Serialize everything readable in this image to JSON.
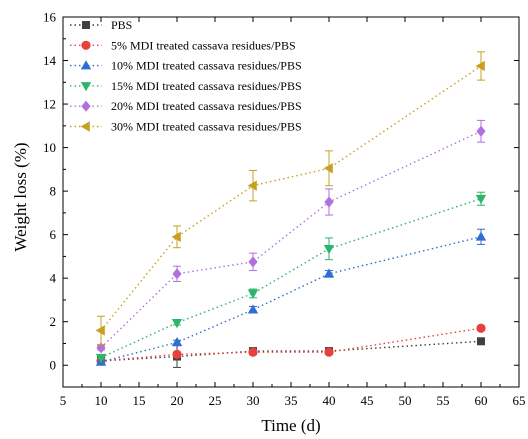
{
  "chart_data": {
    "type": "scatter",
    "xlabel": "Time (d)",
    "ylabel": "Weight loss (%)",
    "xlim": [
      5,
      65
    ],
    "ylim": [
      -1,
      16
    ],
    "x_ticks": [
      5,
      10,
      15,
      20,
      25,
      30,
      35,
      40,
      45,
      50,
      55,
      60,
      65
    ],
    "y_ticks": [
      0,
      2,
      4,
      6,
      8,
      10,
      12,
      14,
      16
    ],
    "grid": false,
    "legend_position": "top-left",
    "x": [
      10,
      20,
      30,
      40,
      60
    ],
    "series": [
      {
        "name": "PBS",
        "color": "#404040",
        "marker": "square",
        "values": [
          0.2,
          0.4,
          0.65,
          0.65,
          1.1
        ],
        "errors": [
          0.05,
          0.5,
          0.1,
          0.1,
          0.1
        ]
      },
      {
        "name": "5% MDI treated cassava residues/PBS",
        "color": "#e8403c",
        "marker": "circle",
        "values": [
          0.2,
          0.5,
          0.6,
          0.6,
          1.7
        ],
        "errors": [
          0.05,
          0.1,
          0.1,
          0.1,
          0.1
        ]
      },
      {
        "name": "10% MDI treated cassava residues/PBS",
        "color": "#2f6fd1",
        "marker": "triangle-up",
        "values": [
          0.15,
          1.05,
          2.55,
          4.2,
          5.9
        ],
        "errors": [
          0.05,
          0.1,
          0.15,
          0.15,
          0.35
        ]
      },
      {
        "name": "15% MDI treated cassava residues/PBS",
        "color": "#2db56a",
        "marker": "triangle-down",
        "values": [
          0.35,
          1.95,
          3.3,
          5.35,
          7.65
        ],
        "errors": [
          0.05,
          0.1,
          0.2,
          0.5,
          0.3
        ]
      },
      {
        "name": "20% MDI treated cassava residues/PBS",
        "color": "#b070e0",
        "marker": "diamond",
        "values": [
          0.8,
          4.2,
          4.75,
          7.5,
          10.75
        ],
        "errors": [
          0.1,
          0.35,
          0.4,
          0.6,
          0.5
        ]
      },
      {
        "name": "30% MDI treated cassava residues/PBS",
        "color": "#c8a020",
        "marker": "triangle-left",
        "values": [
          1.6,
          5.9,
          8.25,
          9.05,
          13.75
        ],
        "errors": [
          0.65,
          0.5,
          0.7,
          0.8,
          0.65
        ]
      }
    ]
  }
}
